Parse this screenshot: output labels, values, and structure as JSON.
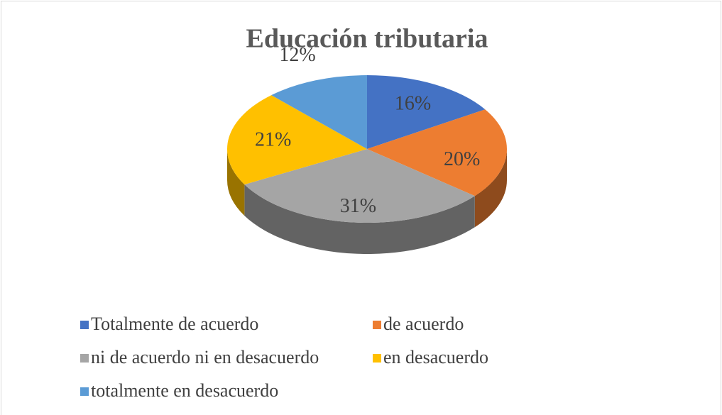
{
  "chart_data": {
    "type": "pie3d",
    "title": "Educación tributaria",
    "categories": [
      "Totalmente de acuerdo",
      "de acuerdo",
      "ni de acuerdo ni en desacuerdo",
      "en desacuerdo",
      "totalmente en desacuerdo"
    ],
    "values": [
      16,
      20,
      31,
      21,
      12
    ],
    "value_labels": [
      "16%",
      "20%",
      "31%",
      "21%",
      "12%"
    ],
    "colors": [
      "#4472c4",
      "#ed7d31",
      "#a5a5a5",
      "#ffc000",
      "#5b9bd5"
    ],
    "legend": "bottom"
  }
}
